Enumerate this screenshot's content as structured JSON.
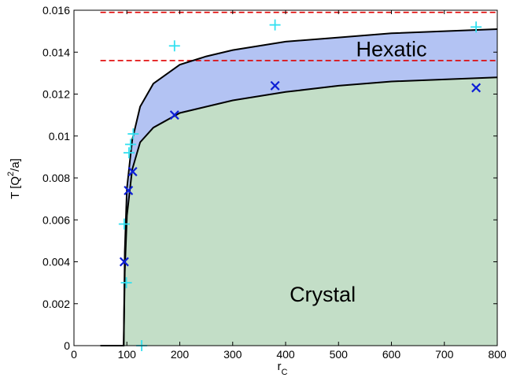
{
  "chart_data": {
    "type": "scatter",
    "xlabel_main": "r",
    "xlabel_sub": "C",
    "ylabel_main": "T  [Q",
    "ylabel_sup": "2",
    "ylabel_end": "/a]",
    "xlim": [
      0,
      800
    ],
    "ylim": [
      0,
      0.016
    ],
    "x_ticks": [
      0,
      100,
      200,
      300,
      400,
      500,
      600,
      700,
      800
    ],
    "x_tick_labels": [
      "0",
      "100",
      "200",
      "300",
      "400",
      "500",
      "600",
      "700",
      "800"
    ],
    "y_ticks": [
      0,
      0.002,
      0.004,
      0.006,
      0.008,
      0.01,
      0.012,
      0.014,
      0.016
    ],
    "y_tick_labels": [
      "0",
      "0.002",
      "0.004",
      "0.006",
      "0.008",
      "0.01",
      "0.012",
      "0.014",
      "0.016"
    ],
    "grid": false,
    "regions": [
      {
        "label": "Hexatic",
        "x": 600,
        "y": 0.0138,
        "color": "#b3c3f3"
      },
      {
        "label": "Crystal",
        "x": 470,
        "y": 0.0021,
        "color": "#c3dec7"
      }
    ],
    "curves": {
      "upper": {
        "points": [
          [
            50,
            0
          ],
          [
            94,
            0
          ],
          [
            96,
            0.0045
          ],
          [
            100,
            0.0075
          ],
          [
            110,
            0.0098
          ],
          [
            125,
            0.0114
          ],
          [
            150,
            0.0125
          ],
          [
            200,
            0.0134
          ],
          [
            250,
            0.0138
          ],
          [
            300,
            0.0141
          ],
          [
            400,
            0.0145
          ],
          [
            500,
            0.0147
          ],
          [
            600,
            0.0149
          ],
          [
            700,
            0.015
          ],
          [
            800,
            0.0151
          ]
        ],
        "color": "#000000"
      },
      "lower": {
        "points": [
          [
            94,
            0
          ],
          [
            96,
            0.0035
          ],
          [
            100,
            0.0062
          ],
          [
            110,
            0.0084
          ],
          [
            125,
            0.0097
          ],
          [
            150,
            0.0104
          ],
          [
            200,
            0.0111
          ],
          [
            250,
            0.0114
          ],
          [
            300,
            0.0117
          ],
          [
            400,
            0.0121
          ],
          [
            500,
            0.0124
          ],
          [
            600,
            0.0126
          ],
          [
            700,
            0.0127
          ],
          [
            800,
            0.0128
          ]
        ],
        "color": "#000000"
      }
    },
    "reference_lines": [
      {
        "y": 0.0159,
        "x_range": [
          50,
          800
        ],
        "color": "#e00000",
        "style": "dashed"
      },
      {
        "y": 0.0136,
        "x_range": [
          50,
          800
        ],
        "color": "#e00000",
        "style": "dashed"
      }
    ],
    "series": [
      {
        "marker": "plus",
        "color": "#33e0f0",
        "x": [
          95,
          99,
          104,
          107,
          112,
          128,
          190,
          380,
          760
        ],
        "y": [
          0.0058,
          0.003,
          0.0092,
          0.0096,
          0.0101,
          0.0,
          0.0143,
          0.0153,
          0.0152
        ]
      },
      {
        "marker": "cross",
        "color": "#0d1fd6",
        "x": [
          95,
          103,
          111,
          190,
          380,
          760
        ],
        "y": [
          0.004,
          0.0074,
          0.0083,
          0.011,
          0.0124,
          0.0123
        ]
      }
    ]
  }
}
